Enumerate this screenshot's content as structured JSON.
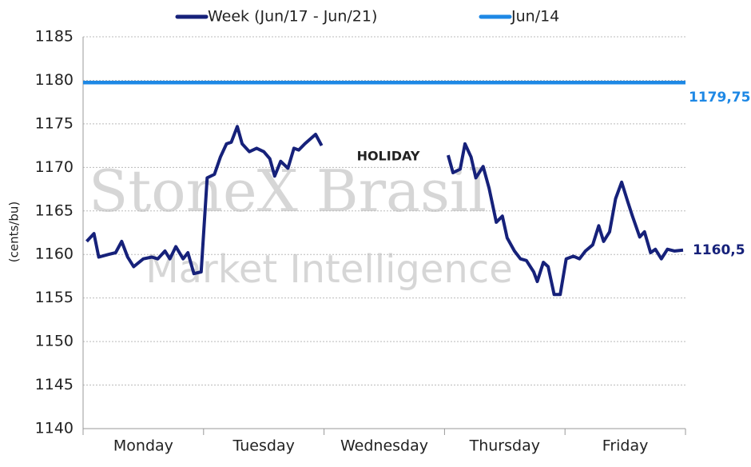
{
  "chart_data": {
    "type": "line",
    "y_label": "(cents/bu)",
    "annotation": "HOLIDAY",
    "watermark": [
      "StoneX Brasil",
      "Market Intelligence"
    ],
    "xlim": [
      0,
      5
    ],
    "xticks": [
      {
        "value": 0.5,
        "label": "Monday"
      },
      {
        "value": 1.5,
        "label": "Tuesday"
      },
      {
        "value": 2.5,
        "label": "Wednesday"
      },
      {
        "value": 3.5,
        "label": "Thursday"
      },
      {
        "value": 4.5,
        "label": "Friday"
      }
    ],
    "ylim": [
      1140,
      1185
    ],
    "yticks": [
      1140,
      1145,
      1150,
      1155,
      1160,
      1165,
      1170,
      1175,
      1180,
      1185
    ],
    "grid": true,
    "series": [
      {
        "name": "Week (Jun/17 - Jun/21)",
        "color": "#16217a",
        "x": [
          0.03,
          0.09,
          0.13,
          0.21,
          0.27,
          0.32,
          0.37,
          0.42,
          0.5,
          0.57,
          0.62,
          0.68,
          0.72,
          0.77,
          0.83,
          0.87,
          0.92,
          0.98,
          1.03,
          1.09,
          1.14,
          1.19,
          1.23,
          1.28,
          1.32,
          1.38,
          1.44,
          1.5,
          1.55,
          1.59,
          1.64,
          1.7,
          1.75,
          1.79,
          1.84,
          1.93,
          1.98,
          2.5,
          3.03,
          3.07,
          3.13,
          3.17,
          3.22,
          3.26,
          3.32,
          3.37,
          3.43,
          3.48,
          3.52,
          3.58,
          3.63,
          3.68,
          3.74,
          3.77,
          3.82,
          3.86,
          3.91,
          3.96,
          4.01,
          4.07,
          4.12,
          4.17,
          4.23,
          4.28,
          4.32,
          4.37,
          4.42,
          4.47,
          4.52,
          4.56,
          4.62,
          4.66,
          4.71,
          4.75,
          4.8,
          4.85,
          4.91,
          4.98
        ],
        "values": [
          1161.5,
          1162.4,
          1159.7,
          1160.0,
          1160.2,
          1161.5,
          1159.7,
          1158.6,
          1159.5,
          1159.7,
          1159.5,
          1160.4,
          1159.5,
          1160.9,
          1159.5,
          1160.2,
          1157.8,
          1158.0,
          1168.8,
          1169.2,
          1171.2,
          1172.7,
          1172.9,
          1174.7,
          1172.7,
          1171.8,
          1172.2,
          1171.8,
          1171.0,
          1169.0,
          1170.7,
          1169.9,
          1172.2,
          1172.0,
          1172.7,
          1173.8,
          1172.5,
          null,
          1171.4,
          1169.4,
          1169.8,
          1172.7,
          1171.2,
          1168.8,
          1170.1,
          1167.6,
          1163.7,
          1164.4,
          1161.9,
          1160.4,
          1159.5,
          1159.3,
          1158.0,
          1156.9,
          1159.1,
          1158.6,
          1155.4,
          1155.4,
          1159.5,
          1159.8,
          1159.5,
          1160.4,
          1161.1,
          1163.3,
          1161.5,
          1162.6,
          1166.4,
          1168.3,
          1166.1,
          1164.4,
          1162.0,
          1162.6,
          1160.2,
          1160.6,
          1159.5,
          1160.6,
          1160.4,
          1160.5
        ],
        "value_labels": [
          null,
          null,
          null,
          null,
          null,
          null,
          null,
          null,
          null,
          null,
          null,
          null,
          null,
          null,
          null,
          null,
          null,
          null,
          null,
          null,
          null,
          null,
          null,
          null,
          null,
          null,
          null,
          null,
          null,
          null,
          null,
          null,
          null,
          null,
          null,
          null,
          null,
          null,
          null,
          null,
          null,
          null,
          null,
          null,
          null,
          null,
          null,
          null,
          null,
          null,
          null,
          null,
          null,
          null,
          null,
          null,
          null,
          null,
          null,
          null,
          null,
          null,
          null,
          null,
          null,
          null,
          null,
          null,
          null,
          null,
          null,
          null,
          null,
          null,
          null,
          null,
          null,
          "1160,5"
        ]
      },
      {
        "name": "Jun/14",
        "color": "#1e88e5",
        "x": [
          0,
          5
        ],
        "values": [
          1179.75,
          1179.75
        ],
        "value_labels": [
          null,
          "1179,75"
        ]
      }
    ]
  }
}
